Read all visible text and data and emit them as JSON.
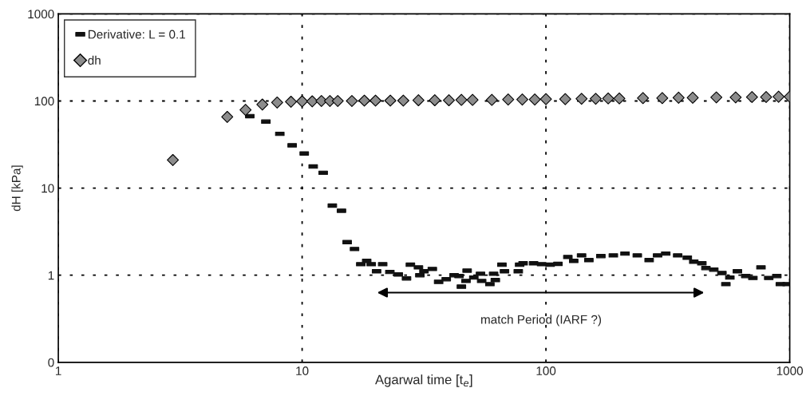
{
  "chart_data": {
    "type": "scatter",
    "xlabel": "Agarwal time [t$_{e}$]",
    "ylabel": "dH [kPa]",
    "log": "xy",
    "grid": true,
    "legend": "top left",
    "xlim": [
      1,
      1000
    ],
    "xticks": [
      1,
      10,
      100,
      1000
    ],
    "ylim": [
      0.1,
      1000
    ],
    "yticks": [
      {
        "value": 0.1,
        "label": "0"
      },
      1,
      10,
      100,
      1000
    ],
    "series": [
      {
        "name": "Derivative: L = 0.1",
        "marker": "square",
        "color": "#111111",
        "x": [
          6.1,
          7.1,
          8.1,
          9.1,
          10.2,
          11.1,
          12.2,
          13.3,
          14.5,
          15.3,
          16.4,
          17.4,
          18.4,
          19.2,
          20.2,
          21.4,
          22.9,
          24.8,
          26.8,
          27.8,
          30,
          30.4,
          31.6,
          34.2,
          36.3,
          39,
          42,
          44,
          45,
          47,
          47.5,
          50.6,
          53.9,
          54.5,
          58.9,
          61,
          62,
          66,
          67.6,
          77,
          78,
          80.6,
          89,
          96,
          104,
          112,
          123,
          130,
          140,
          150,
          168,
          189,
          211,
          237,
          265,
          287,
          310,
          347,
          380,
          404,
          436,
          453,
          488,
          527,
          547,
          568,
          610,
          660,
          706,
          762,
          820,
          885,
          915,
          976
        ],
        "values": [
          67,
          58,
          42,
          31,
          25,
          17.7,
          15,
          6.3,
          5.5,
          2.4,
          2.0,
          1.34,
          1.46,
          1.34,
          1.11,
          1.34,
          1.09,
          1.02,
          0.92,
          1.32,
          1.23,
          1.0,
          1.11,
          1.18,
          0.84,
          0.9,
          1.0,
          0.98,
          0.74,
          0.86,
          1.13,
          0.94,
          1.04,
          0.86,
          0.79,
          1.04,
          0.88,
          1.32,
          1.11,
          1.11,
          1.32,
          1.37,
          1.37,
          1.34,
          1.32,
          1.35,
          1.62,
          1.46,
          1.69,
          1.49,
          1.66,
          1.69,
          1.77,
          1.69,
          1.49,
          1.69,
          1.77,
          1.69,
          1.59,
          1.43,
          1.37,
          1.21,
          1.16,
          1.06,
          0.79,
          0.94,
          1.11,
          0.98,
          0.93,
          1.23,
          0.93,
          0.98,
          0.79,
          0.79
        ]
      },
      {
        "name": "dh",
        "marker": "diamond",
        "color": "#8c8c8c",
        "x": [
          2.95,
          4.93,
          5.86,
          6.87,
          7.9,
          9,
          10,
          11,
          12,
          13,
          14,
          16,
          18,
          20,
          23,
          26,
          30,
          35,
          40,
          45,
          50,
          60,
          70,
          80,
          90,
          100,
          120,
          140,
          160,
          180,
          200,
          250,
          300,
          350,
          400,
          500,
          600,
          700,
          800,
          900,
          1000
        ],
        "values": [
          21,
          65.6,
          79,
          91,
          96,
          98,
          99,
          99,
          100,
          100,
          100,
          100,
          101,
          101,
          101,
          101,
          102,
          102,
          102,
          103,
          103,
          103,
          104,
          104,
          104,
          105,
          105,
          106,
          106,
          107,
          107,
          108,
          108,
          109,
          109,
          110,
          110,
          111,
          111,
          112,
          112
        ]
      }
    ],
    "annotations": [
      "match Period (IARF ?)"
    ]
  }
}
